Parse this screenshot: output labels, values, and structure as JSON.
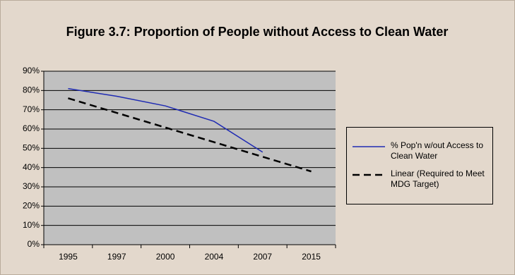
{
  "chart_data": {
    "type": "line",
    "title": "Figure 3.7: Proportion of People without Access to Clean Water",
    "categories": [
      "1995",
      "1997",
      "2000",
      "2004",
      "2007",
      "2015"
    ],
    "series": [
      {
        "name": "% Pop'n w/out Access to Clean Water",
        "color": "#1f2bb3",
        "dash": false,
        "values": [
          81,
          77,
          72,
          64,
          48,
          null
        ]
      },
      {
        "name": "Linear (Required to Meet MDG Target)",
        "color": "#000000",
        "dash": true,
        "values": [
          76,
          68.4,
          60.8,
          53.2,
          45.6,
          38
        ]
      }
    ],
    "ylim": [
      0,
      90
    ],
    "yticks": [
      {
        "value": 0,
        "label": "0%"
      },
      {
        "value": 10,
        "label": "10%"
      },
      {
        "value": 20,
        "label": "20%"
      },
      {
        "value": 30,
        "label": "30%"
      },
      {
        "value": 40,
        "label": "40%"
      },
      {
        "value": 50,
        "label": "50%"
      },
      {
        "value": 60,
        "label": "60%"
      },
      {
        "value": 70,
        "label": "70%"
      },
      {
        "value": 80,
        "label": "80%"
      },
      {
        "value": 90,
        "label": "90%"
      }
    ],
    "grid": true,
    "plot_color": "#c0c0c0"
  }
}
